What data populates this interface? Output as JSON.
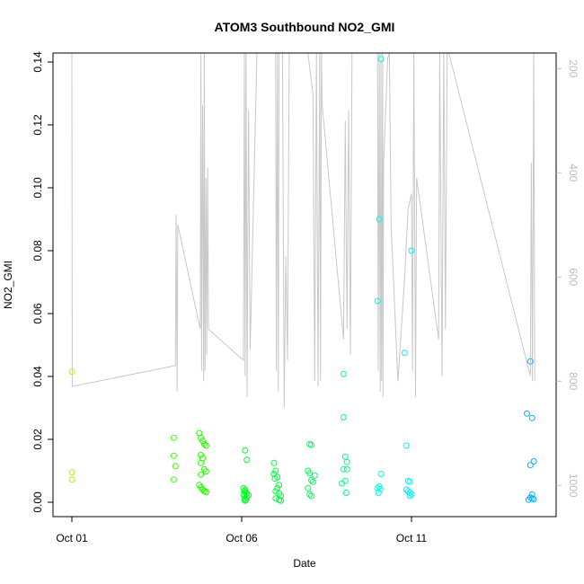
{
  "chart_data": {
    "type": "scatter",
    "title": "ATOM3 Southbound NO2_GMI",
    "xlabel": "Date",
    "ylabel": "NO2_GMI",
    "x_ticks": [
      {
        "day": 1,
        "label": "Oct 01"
      },
      {
        "day": 6,
        "label": "Oct 06"
      },
      {
        "day": 11,
        "label": "Oct 11"
      }
    ],
    "xlim": [
      1.0,
      14.8
    ],
    "ylim": [
      0.0,
      0.146
    ],
    "y_ticks": [
      0.0,
      0.02,
      0.04,
      0.06,
      0.08,
      0.1,
      0.12,
      0.14
    ],
    "y_tick_labels": [
      "0.00",
      "0.02",
      "0.04",
      "0.06",
      "0.08",
      "0.10",
      "0.12",
      "0.14"
    ],
    "right_axis": {
      "label": "",
      "reversed": true,
      "lim": [
        1060,
        170
      ],
      "ticks": [
        200,
        400,
        600,
        800,
        1000
      ],
      "tick_labels": [
        "200",
        "400",
        "600",
        "800",
        "1000"
      ],
      "color": "#bdbdbd"
    },
    "pressure_trace": {
      "name": "",
      "color": "#c8c8c8",
      "points": [
        [
          1.0,
          170
        ],
        [
          1.01,
          810
        ],
        [
          4.05,
          770
        ],
        [
          4.07,
          480
        ],
        [
          4.1,
          820
        ],
        [
          4.12,
          500
        ],
        [
          4.78,
          700
        ],
        [
          4.8,
          170
        ],
        [
          4.82,
          780
        ],
        [
          4.85,
          270
        ],
        [
          4.88,
          800
        ],
        [
          4.9,
          170
        ],
        [
          4.92,
          780
        ],
        [
          4.95,
          410
        ],
        [
          4.97,
          750
        ],
        [
          5.0,
          390
        ],
        [
          5.02,
          700
        ],
        [
          6.05,
          760
        ],
        [
          6.08,
          170
        ],
        [
          6.1,
          790
        ],
        [
          6.13,
          170
        ],
        [
          6.16,
          830
        ],
        [
          6.2,
          280
        ],
        [
          6.25,
          740
        ],
        [
          6.45,
          170
        ],
        [
          7.0,
          170
        ],
        [
          7.02,
          780
        ],
        [
          7.05,
          170
        ],
        [
          7.08,
          820
        ],
        [
          7.1,
          170
        ],
        [
          7.2,
          170
        ],
        [
          7.25,
          850
        ],
        [
          7.3,
          560
        ],
        [
          7.35,
          760
        ],
        [
          7.4,
          170
        ],
        [
          7.95,
          170
        ],
        [
          8.1,
          250
        ],
        [
          8.15,
          800
        ],
        [
          8.2,
          170
        ],
        [
          8.25,
          810
        ],
        [
          8.3,
          170
        ],
        [
          8.32,
          800
        ],
        [
          8.35,
          170
        ],
        [
          8.37,
          270
        ],
        [
          9.0,
          720
        ],
        [
          9.05,
          300
        ],
        [
          9.1,
          700
        ],
        [
          9.15,
          280
        ],
        [
          9.2,
          750
        ],
        [
          9.25,
          170
        ],
        [
          10.0,
          170
        ],
        [
          10.02,
          780
        ],
        [
          10.05,
          170
        ],
        [
          10.08,
          820
        ],
        [
          10.1,
          170
        ],
        [
          10.12,
          800
        ],
        [
          10.15,
          170
        ],
        [
          10.16,
          830
        ],
        [
          10.18,
          380
        ],
        [
          10.3,
          180
        ],
        [
          10.35,
          170
        ],
        [
          10.4,
          500
        ],
        [
          10.5,
          650
        ],
        [
          10.6,
          800
        ],
        [
          10.8,
          600
        ],
        [
          10.9,
          470
        ],
        [
          11.0,
          440
        ],
        [
          11.03,
          780
        ],
        [
          11.07,
          170
        ],
        [
          11.12,
          830
        ],
        [
          11.15,
          410
        ],
        [
          11.8,
          720
        ],
        [
          11.83,
          170
        ],
        [
          11.9,
          790
        ],
        [
          11.95,
          170
        ],
        [
          12.0,
          700
        ],
        [
          12.05,
          170
        ],
        [
          12.1,
          170
        ],
        [
          14.5,
          790
        ],
        [
          14.53,
          380
        ],
        [
          14.56,
          800
        ],
        [
          14.6,
          170
        ],
        [
          14.63,
          800
        ]
      ]
    },
    "series": [
      {
        "name": "",
        "points": [
          [
            1.0,
            0.0415,
            "#9cff00"
          ],
          [
            1.0,
            0.0095,
            "#9cff00"
          ],
          [
            1.0,
            0.0072,
            "#9cff00"
          ],
          [
            4.0,
            0.0205,
            "#40ff00"
          ],
          [
            4.0,
            0.0148,
            "#40ff00"
          ],
          [
            4.05,
            0.0115,
            "#40ff00"
          ],
          [
            4.0,
            0.0072,
            "#40ff00"
          ],
          [
            4.75,
            0.022,
            "#20ff00"
          ],
          [
            4.8,
            0.0205,
            "#20ff00"
          ],
          [
            4.85,
            0.0195,
            "#20ff00"
          ],
          [
            4.9,
            0.0185,
            "#20ff00"
          ],
          [
            4.95,
            0.018,
            "#20ff00"
          ],
          [
            4.8,
            0.015,
            "#20ff00"
          ],
          [
            4.85,
            0.014,
            "#20ff00"
          ],
          [
            4.8,
            0.0125,
            "#20ff00"
          ],
          [
            4.9,
            0.0105,
            "#20ff00"
          ],
          [
            4.95,
            0.0098,
            "#20ff00"
          ],
          [
            4.8,
            0.0088,
            "#20ff00"
          ],
          [
            4.75,
            0.0055,
            "#20ff00"
          ],
          [
            4.8,
            0.0048,
            "#20ff00"
          ],
          [
            4.85,
            0.004,
            "#20ff00"
          ],
          [
            4.9,
            0.0035,
            "#20ff00"
          ],
          [
            4.95,
            0.0033,
            "#20ff00"
          ],
          [
            6.1,
            0.0165,
            "#00ff20"
          ],
          [
            6.15,
            0.0135,
            "#00ff20"
          ],
          [
            6.05,
            0.0045,
            "#00ff20"
          ],
          [
            6.1,
            0.004,
            "#00ff20"
          ],
          [
            6.08,
            0.0035,
            "#00ff20"
          ],
          [
            6.12,
            0.0032,
            "#00ff20"
          ],
          [
            6.15,
            0.0028,
            "#00ff20"
          ],
          [
            6.05,
            0.0025,
            "#00ff20"
          ],
          [
            6.1,
            0.002,
            "#00ff20"
          ],
          [
            6.15,
            0.0015,
            "#00ff20"
          ],
          [
            6.08,
            0.001,
            "#00ff20"
          ],
          [
            6.12,
            0.0008,
            "#00ff20"
          ],
          [
            6.2,
            0.0022,
            "#00ff20"
          ],
          [
            6.1,
            0.0005,
            "#00ff20"
          ],
          [
            6.95,
            0.0125,
            "#00ff40"
          ],
          [
            7.0,
            0.01,
            "#00ff40"
          ],
          [
            6.95,
            0.009,
            "#00ff40"
          ],
          [
            7.05,
            0.008,
            "#00ff40"
          ],
          [
            6.98,
            0.0075,
            "#00ff40"
          ],
          [
            7.1,
            0.0055,
            "#00ff40"
          ],
          [
            7.05,
            0.0045,
            "#00ff40"
          ],
          [
            7.0,
            0.0035,
            "#00ff40"
          ],
          [
            7.1,
            0.0028,
            "#00ff40"
          ],
          [
            7.15,
            0.002,
            "#00ff40"
          ],
          [
            7.0,
            0.0012,
            "#00ff40"
          ],
          [
            7.1,
            0.0008,
            "#00ff40"
          ],
          [
            7.15,
            0.0005,
            "#00ff40"
          ],
          [
            8.0,
            0.0185,
            "#00ff60"
          ],
          [
            8.05,
            0.0182,
            "#00ff60"
          ],
          [
            7.95,
            0.01,
            "#00ff60"
          ],
          [
            8.0,
            0.0092,
            "#00ff60"
          ],
          [
            8.15,
            0.0085,
            "#00ff60"
          ],
          [
            8.05,
            0.007,
            "#00ff60"
          ],
          [
            8.1,
            0.0065,
            "#00ff60"
          ],
          [
            7.95,
            0.0045,
            "#00ff60"
          ],
          [
            8.0,
            0.0025,
            "#00ff60"
          ],
          [
            8.05,
            0.002,
            "#00ff60"
          ],
          [
            9.0,
            0.0408,
            "#00ff80"
          ],
          [
            9.0,
            0.027,
            "#00ff80"
          ],
          [
            9.05,
            0.0145,
            "#00ff80"
          ],
          [
            9.1,
            0.0128,
            "#00ff80"
          ],
          [
            9.0,
            0.0105,
            "#00ff80"
          ],
          [
            9.1,
            0.0105,
            "#00ff80"
          ],
          [
            9.05,
            0.0068,
            "#00ff80"
          ],
          [
            8.95,
            0.006,
            "#00ff80"
          ],
          [
            9.08,
            0.003,
            "#00ff80"
          ],
          [
            10.1,
            0.141,
            "#00ffe0"
          ],
          [
            10.05,
            0.09,
            "#00ffe0"
          ],
          [
            10.0,
            0.064,
            "#00ffe0"
          ],
          [
            10.1,
            0.009,
            "#00ffe0"
          ],
          [
            10.05,
            0.005,
            "#00ffe0"
          ],
          [
            10.0,
            0.0045,
            "#00ffe0"
          ],
          [
            10.08,
            0.0042,
            "#00ffe0"
          ],
          [
            10.03,
            0.003,
            "#00ffe0"
          ],
          [
            11.0,
            0.08,
            "#00f0ff"
          ],
          [
            10.8,
            0.0475,
            "#00f0ff"
          ],
          [
            10.85,
            0.018,
            "#00f0ff"
          ],
          [
            10.9,
            0.0068,
            "#00f0ff"
          ],
          [
            10.95,
            0.0065,
            "#00f0ff"
          ],
          [
            10.85,
            0.004,
            "#00f0ff"
          ],
          [
            10.9,
            0.0035,
            "#00f0ff"
          ],
          [
            10.95,
            0.003,
            "#00f0ff"
          ],
          [
            11.0,
            0.0025,
            "#00f0ff"
          ],
          [
            10.95,
            0.002,
            "#00f0ff"
          ],
          [
            14.5,
            0.0448,
            "#00b0ff"
          ],
          [
            14.4,
            0.0282,
            "#00b0ff"
          ],
          [
            14.55,
            0.0268,
            "#00b0ff"
          ],
          [
            14.6,
            0.013,
            "#00b0ff"
          ],
          [
            14.5,
            0.0118,
            "#00b0ff"
          ],
          [
            14.55,
            0.0025,
            "#00b0ff"
          ],
          [
            14.5,
            0.0015,
            "#00b0ff"
          ],
          [
            14.55,
            0.0012,
            "#00b0ff"
          ],
          [
            14.6,
            0.001,
            "#00b0ff"
          ],
          [
            14.45,
            0.0008,
            "#00b0ff"
          ]
        ]
      }
    ],
    "grid": false,
    "legend": "none"
  }
}
